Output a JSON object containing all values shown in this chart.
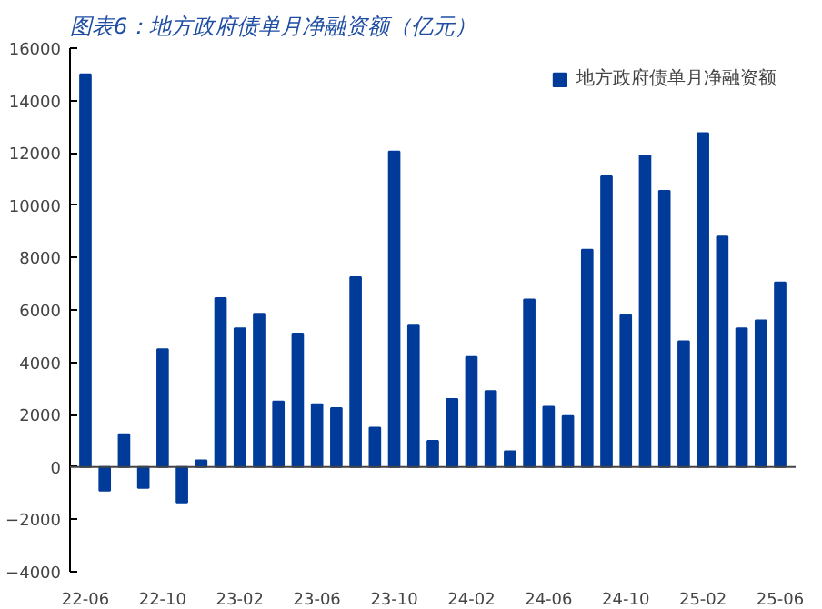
{
  "chart_data": {
    "type": "bar",
    "title": "图表6：地方政府债单月净融资额（亿元）",
    "categories": [
      "22-06",
      null,
      null,
      null,
      "22-10",
      null,
      null,
      null,
      "23-02",
      null,
      null,
      null,
      "23-06",
      null,
      null,
      null,
      "23-10",
      null,
      null,
      null,
      "24-02",
      null,
      null,
      null,
      "24-06",
      null,
      null,
      null,
      "24-10",
      null,
      null,
      null,
      "25-02",
      null,
      null,
      null,
      "25-06"
    ],
    "series": [
      {
        "name": "地方政府债单月净融资额",
        "color": "#003b9a",
        "values": [
          15000,
          -900,
          1250,
          -800,
          4500,
          -1350,
          250,
          6450,
          5300,
          5850,
          2500,
          5100,
          2400,
          2250,
          7250,
          1500,
          12050,
          5400,
          1000,
          2600,
          4200,
          2900,
          600,
          6400,
          2300,
          1950,
          8300,
          11100,
          5800,
          11900,
          10550,
          4800,
          12750,
          8800,
          5300,
          5600,
          7050
        ]
      }
    ],
    "ylim": [
      -4000,
      16000
    ],
    "yticks": [
      -4000,
      -2000,
      0,
      2000,
      4000,
      6000,
      8000,
      10000,
      12000,
      14000,
      16000
    ],
    "ref_lines": [
      {
        "axis": "y",
        "value": 0,
        "color": "#444444"
      }
    ],
    "grid": false,
    "legend": "top right"
  }
}
